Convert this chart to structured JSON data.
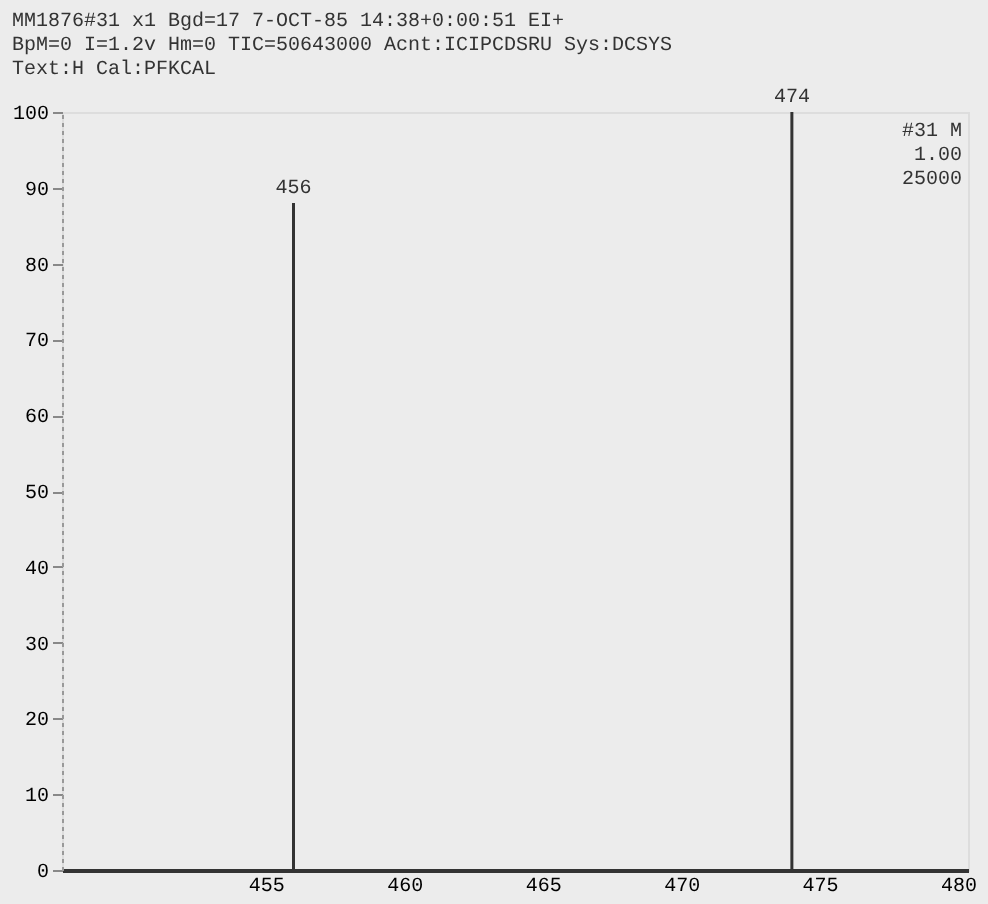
{
  "chart_data": {
    "type": "bar",
    "x": [
      456,
      474
    ],
    "values": [
      88,
      100
    ],
    "color": "#333333",
    "xlim": [
      448,
      480
    ],
    "xticks": [
      455,
      460,
      465,
      470,
      475,
      480
    ],
    "ylim": [
      0,
      100
    ],
    "yticks": [
      0,
      10,
      20,
      30,
      40,
      50,
      60,
      70,
      80,
      90,
      100
    ],
    "grid": false,
    "annotations": [
      {
        "text": "456",
        "x": 456,
        "y": 88
      },
      {
        "text": "474",
        "x": 474,
        "y": 100
      },
      "MM1876#31   x1   Bgd=17   7-OCT-85   14:38+0:00:51   EI+",
      "BpM=0   I=1.2v   Hm=0   TIC=50643000        Acnt:ICIPCDSRU  Sys:DCSYS",
      "Text:H                                              Cal:PFKCAL",
      "#31  M",
      "1.00",
      "25000"
    ]
  }
}
